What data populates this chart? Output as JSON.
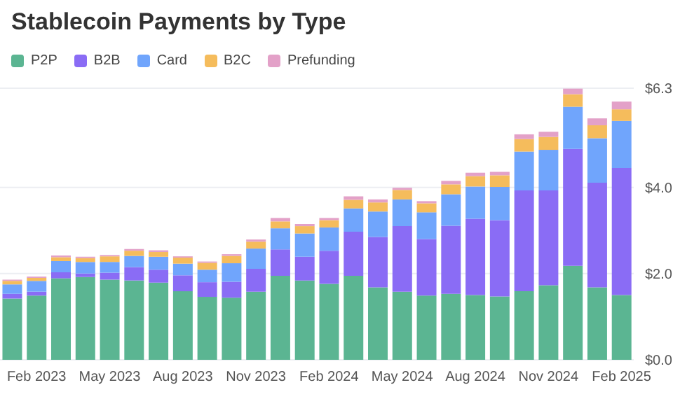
{
  "chart_data": {
    "type": "bar",
    "stacked": true,
    "title": "Stablecoin Payments by Type",
    "legend": "top left",
    "grid": "y",
    "ylim": [
      0,
      6.3
    ],
    "yticks": [
      {
        "value": 0,
        "label": "$0.0"
      },
      {
        "value": 2,
        "label": "$2.0"
      },
      {
        "value": 4,
        "label": "$4.0"
      },
      {
        "value": 6.3,
        "label": "$6.3"
      }
    ],
    "categories": [
      null,
      "Feb 2023",
      null,
      null,
      "May 2023",
      null,
      null,
      "Aug 2023",
      null,
      null,
      "Nov 2023",
      null,
      null,
      "Feb 2024",
      null,
      null,
      "May 2024",
      null,
      null,
      "Aug 2024",
      null,
      null,
      "Nov 2024",
      null,
      null,
      "Feb 2025"
    ],
    "series": [
      {
        "name": "P2P",
        "color": "#5bb592",
        "values": [
          1.42,
          1.49,
          1.89,
          1.92,
          1.86,
          1.84,
          1.79,
          1.59,
          1.46,
          1.44,
          1.58,
          1.95,
          1.84,
          1.76,
          1.95,
          1.68,
          1.58,
          1.49,
          1.53,
          1.5,
          1.47,
          1.59,
          1.73,
          2.18,
          1.68,
          1.5
        ]
      },
      {
        "name": "B2B",
        "color": "#8a6cf5",
        "values": [
          0.11,
          0.09,
          0.14,
          0.08,
          0.16,
          0.31,
          0.3,
          0.37,
          0.34,
          0.37,
          0.53,
          0.61,
          0.55,
          0.77,
          1.02,
          1.17,
          1.52,
          1.31,
          1.58,
          1.77,
          1.77,
          2.34,
          2.2,
          2.71,
          2.43,
          2.95
        ]
      },
      {
        "name": "Card",
        "color": "#70a5fc",
        "values": [
          0.22,
          0.25,
          0.26,
          0.27,
          0.25,
          0.26,
          0.3,
          0.27,
          0.29,
          0.43,
          0.47,
          0.49,
          0.54,
          0.54,
          0.54,
          0.59,
          0.62,
          0.62,
          0.73,
          0.75,
          0.77,
          0.9,
          0.94,
          0.98,
          1.03,
          1.09
        ]
      },
      {
        "name": "B2C",
        "color": "#f5bc5c",
        "values": [
          0.08,
          0.07,
          0.09,
          0.09,
          0.13,
          0.12,
          0.11,
          0.14,
          0.16,
          0.17,
          0.16,
          0.16,
          0.17,
          0.17,
          0.2,
          0.21,
          0.22,
          0.21,
          0.23,
          0.24,
          0.27,
          0.29,
          0.3,
          0.29,
          0.3,
          0.27
        ]
      },
      {
        "name": "Prefunding",
        "color": "#e3a1c8",
        "values": [
          0.03,
          0.03,
          0.04,
          0.03,
          0.03,
          0.04,
          0.04,
          0.03,
          0.03,
          0.04,
          0.05,
          0.08,
          0.05,
          0.05,
          0.08,
          0.07,
          0.05,
          0.05,
          0.08,
          0.08,
          0.08,
          0.11,
          0.12,
          0.13,
          0.16,
          0.18
        ]
      }
    ]
  }
}
